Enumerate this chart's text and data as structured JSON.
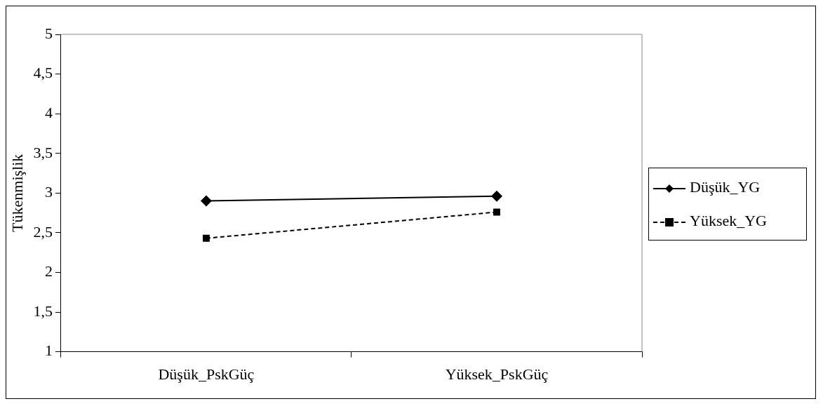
{
  "chart_data": {
    "type": "line",
    "ylabel": "Tükenmişlik",
    "categories": [
      "Düşük_PskGüç",
      "Yüksek_PskGüç"
    ],
    "series": [
      {
        "name": "Düşük_YG",
        "color": "#000000",
        "values": [
          2.9,
          2.96
        ],
        "marker": "diamond",
        "line_style": "solid"
      },
      {
        "name": "Yüksek_YG",
        "color": "#000000",
        "values": [
          2.43,
          2.76
        ],
        "marker": "square",
        "line_style": "dashed"
      }
    ],
    "ylim": [
      1,
      5
    ],
    "yticks": [
      1,
      {
        "value": 1.5,
        "label": "1,5"
      },
      2,
      {
        "value": 2.5,
        "label": "2,5"
      },
      3,
      {
        "value": 3.5,
        "label": "3,5"
      },
      4,
      {
        "value": 4.5,
        "label": "4,5"
      },
      5
    ],
    "grid": false,
    "legend": "right"
  }
}
